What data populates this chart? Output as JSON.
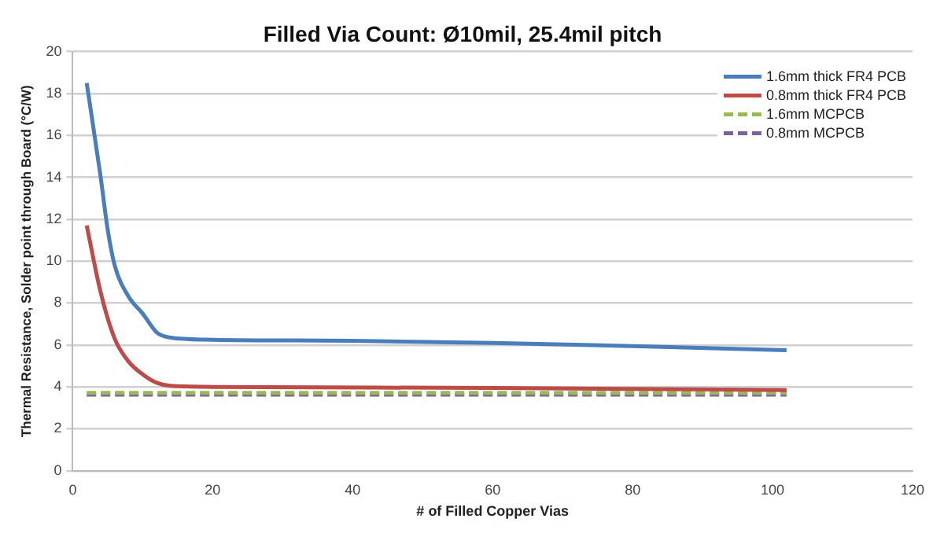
{
  "chart_data": {
    "type": "line",
    "title": "Filled Via Count: Ø10mil, 25.4mil pitch",
    "xlabel": "# of Filled Copper Vias",
    "ylabel": "Thermal Resistance, Solder point through Board (°C/W)",
    "xlim": [
      0,
      120
    ],
    "xticks": [
      0,
      20,
      40,
      60,
      80,
      100,
      120
    ],
    "ylim": [
      0,
      20
    ],
    "yticks": [
      0,
      2,
      4,
      6,
      8,
      10,
      12,
      14,
      16,
      18,
      20
    ],
    "grid": "y",
    "legend": "top right",
    "marker": "none",
    "series": [
      {
        "name": "1.6mm thick FR4 PCB",
        "color": "#4a7ebb",
        "line_style": "solid",
        "x": [
          2,
          4,
          5,
          6,
          8,
          10,
          12,
          14,
          20,
          40,
          60,
          80,
          102
        ],
        "values": [
          18.5,
          14,
          11.5,
          9.8,
          8.3,
          7.5,
          6.6,
          6.35,
          6.25,
          6.2,
          6.1,
          5.95,
          5.75
        ]
      },
      {
        "name": "0.8mm thick FR4 PCB",
        "color": "#be4b48",
        "line_style": "solid",
        "x": [
          2,
          4,
          6,
          8,
          10,
          12,
          14,
          20,
          60,
          102
        ],
        "values": [
          11.7,
          8.5,
          6.3,
          5.2,
          4.6,
          4.2,
          4.05,
          4.0,
          3.95,
          3.85
        ]
      },
      {
        "name": "1.6mm MCPCB",
        "color": "#98b954",
        "line_style": "dashed",
        "x": [
          2,
          102
        ],
        "values": [
          3.72,
          3.72
        ]
      },
      {
        "name": "0.8mm MCPCB",
        "color": "#7d60a0",
        "line_style": "dashed",
        "x": [
          2,
          102
        ],
        "values": [
          3.63,
          3.63
        ]
      }
    ]
  }
}
